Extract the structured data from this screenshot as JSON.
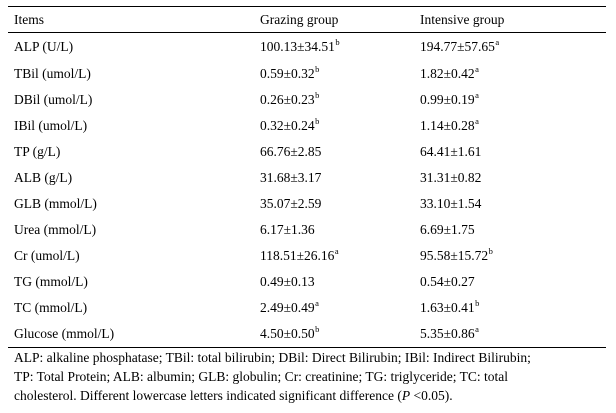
{
  "table": {
    "headers": [
      "Items",
      "Grazing group",
      "Intensive group"
    ],
    "rows": [
      {
        "item": "ALP (U/L)",
        "grazing": "100.13±34.51",
        "grazing_sup": "b",
        "intensive": "194.77±57.65",
        "intensive_sup": "a"
      },
      {
        "item": "TBil (umol/L)",
        "grazing": "0.59±0.32",
        "grazing_sup": "b",
        "intensive": "1.82±0.42",
        "intensive_sup": "a"
      },
      {
        "item": "DBil (umol/L)",
        "grazing": "0.26±0.23",
        "grazing_sup": "b",
        "intensive": "0.99±0.19",
        "intensive_sup": "a"
      },
      {
        "item": "IBil (umol/L)",
        "grazing": "0.32±0.24",
        "grazing_sup": "b",
        "intensive": "1.14±0.28",
        "intensive_sup": "a"
      },
      {
        "item": "TP (g/L)",
        "grazing": "66.76±2.85",
        "grazing_sup": "",
        "intensive": "64.41±1.61",
        "intensive_sup": ""
      },
      {
        "item": "ALB (g/L)",
        "grazing": "31.68±3.17",
        "grazing_sup": "",
        "intensive": "31.31±0.82",
        "intensive_sup": ""
      },
      {
        "item": "GLB (mmol/L)",
        "grazing": "35.07±2.59",
        "grazing_sup": "",
        "intensive": "33.10±1.54",
        "intensive_sup": ""
      },
      {
        "item": "Urea (mmol/L)",
        "grazing": "6.17±1.36",
        "grazing_sup": "",
        "intensive": "6.69±1.75",
        "intensive_sup": ""
      },
      {
        "item": "Cr (umol/L)",
        "grazing": "118.51±26.16",
        "grazing_sup": "a",
        "intensive": "95.58±15.72",
        "intensive_sup": "b"
      },
      {
        "item": "TG (mmol/L)",
        "grazing": "0.49±0.13",
        "grazing_sup": "",
        "intensive": "0.54±0.27",
        "intensive_sup": ""
      },
      {
        "item": "TC (mmol/L)",
        "grazing": "2.49±0.49",
        "grazing_sup": "a",
        "intensive": "1.63±0.41",
        "intensive_sup": "b"
      },
      {
        "item": "Glucose (mmol/L)",
        "grazing": "4.50±0.50",
        "grazing_sup": "b",
        "intensive": "5.35±0.86",
        "intensive_sup": "a"
      }
    ]
  },
  "footnote": {
    "line1": "ALP: alkaline phosphatase; TBil: total bilirubin; DBil: Direct Bilirubin; IBil: Indirect Bilirubin;",
    "line2": "TP: Total Protein; ALB: albumin; GLB: globulin; Cr: creatinine; TG: triglyceride; TC: total",
    "line3_prefix": "cholesterol. Different lowercase letters indicated significant difference (",
    "line3_italic": "P",
    "line3_suffix": " <0.05)."
  }
}
